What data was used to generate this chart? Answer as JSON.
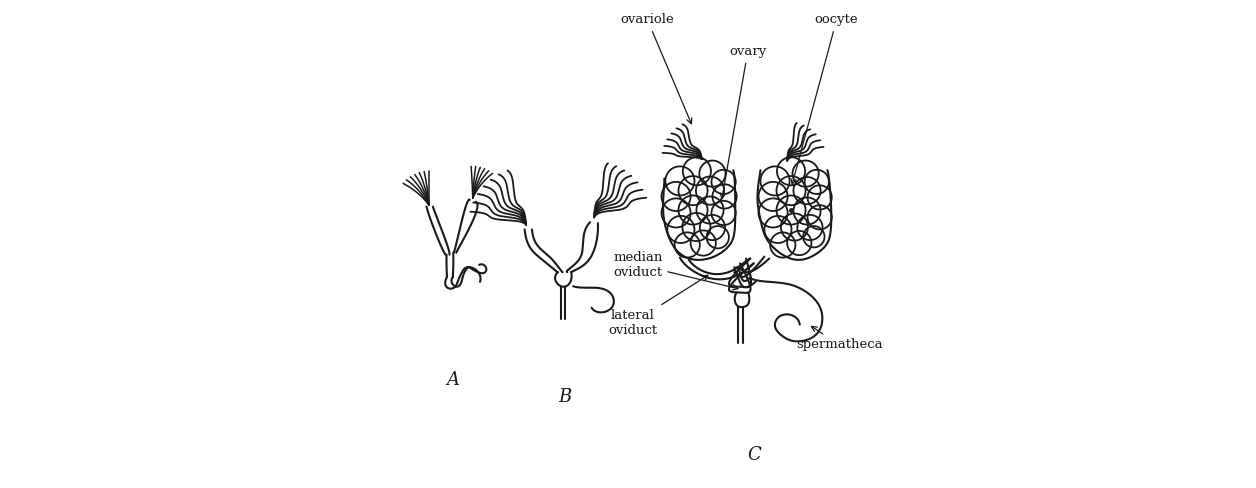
{
  "background_color": "#ffffff",
  "line_color": "#1a1a1a",
  "line_width": 1.5,
  "label_A": "A",
  "label_B": "B",
  "label_C": "C",
  "figsize": [
    12.56,
    4.88
  ],
  "dpi": 100
}
